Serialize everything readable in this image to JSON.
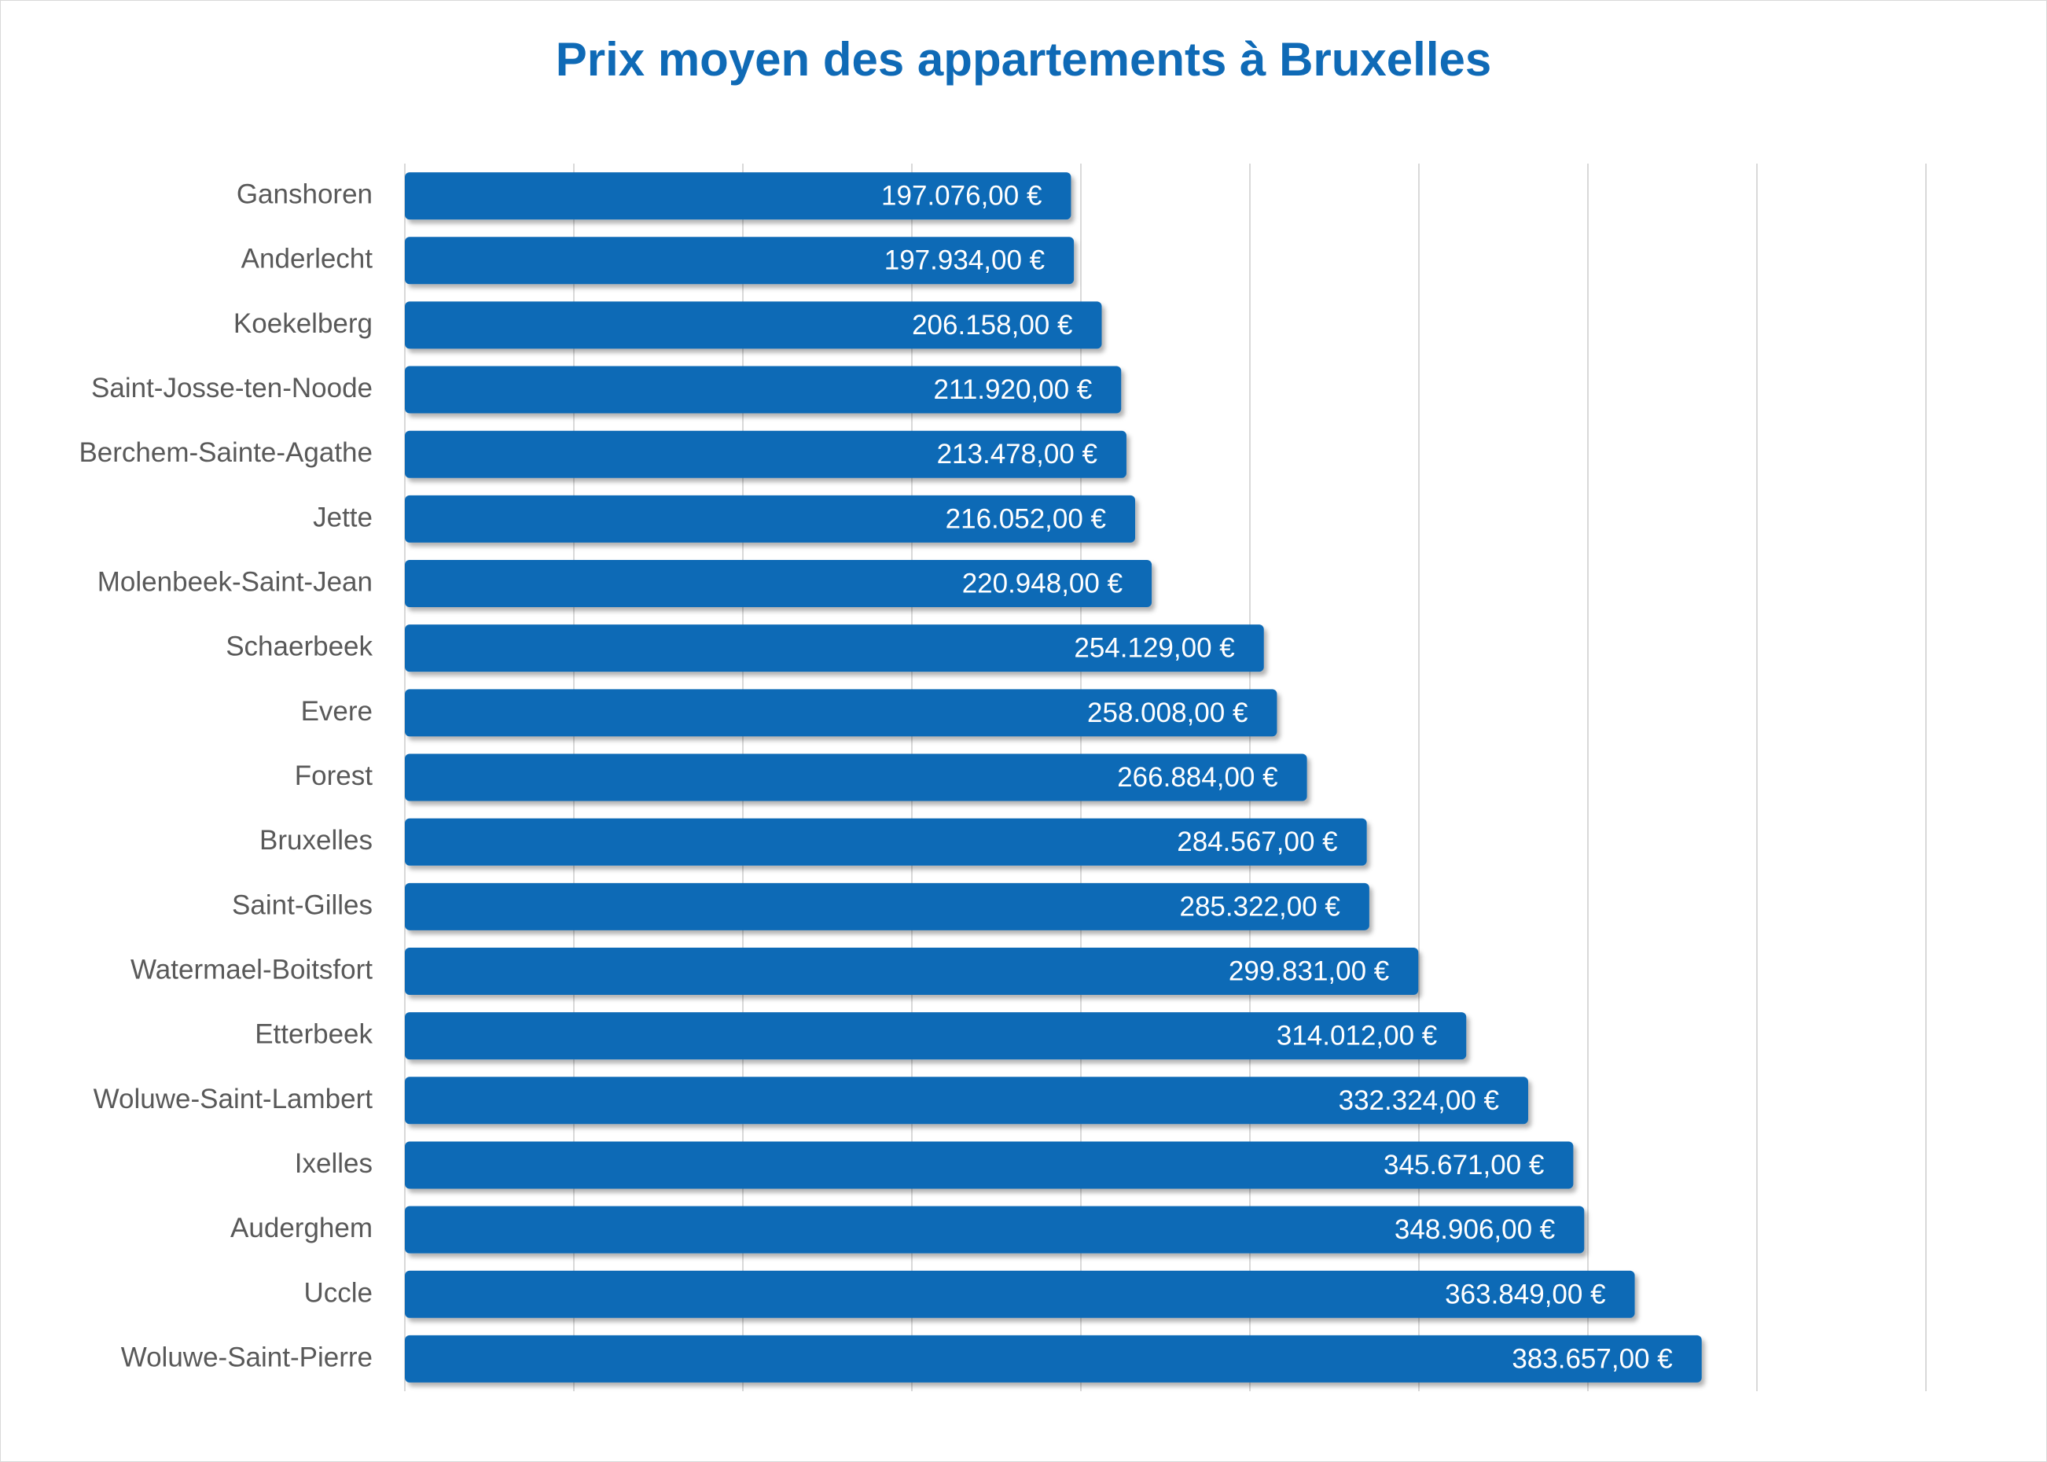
{
  "chart_data": {
    "type": "bar",
    "orientation": "horizontal",
    "title": "Prix moyen des appartements à Bruxelles",
    "xlabel": "",
    "ylabel": "",
    "xlim": [
      0,
      450000
    ],
    "grid": true,
    "legend": "none",
    "bar_color": "#0F6AB6",
    "title_color": "#0F6AB6",
    "categories": [
      "Ganshoren",
      "Anderlecht",
      "Koekelberg",
      "Saint-Josse-ten-Noode",
      "Berchem-Sainte-Agathe",
      "Jette",
      "Molenbeek-Saint-Jean",
      "Schaerbeek",
      "Evere",
      "Forest",
      "Bruxelles",
      "Saint-Gilles",
      "Watermael-Boitsfort",
      "Etterbeek",
      "Woluwe-Saint-Lambert",
      "Ixelles",
      "Auderghem",
      "Uccle",
      "Woluwe-Saint-Pierre"
    ],
    "values": [
      197076,
      197934,
      206158,
      211920,
      213478,
      216052,
      220948,
      254129,
      258008,
      266884,
      284567,
      285322,
      299831,
      314012,
      332324,
      345671,
      348906,
      363849,
      383657
    ],
    "data_labels": [
      "197.076,00 €",
      "197.934,00 €",
      "206.158,00 €",
      "211.920,00 €",
      "213.478,00 €",
      "216.052,00 €",
      "220.948,00 €",
      "254.129,00 €",
      "258.008,00 €",
      "266.884,00 €",
      "284.567,00 €",
      "285.322,00 €",
      "299.831,00 €",
      "314.012,00 €",
      "332.324,00 €",
      "345.671,00 €",
      "348.906,00 €",
      "363.849,00 €",
      "383.657,00 €"
    ]
  }
}
